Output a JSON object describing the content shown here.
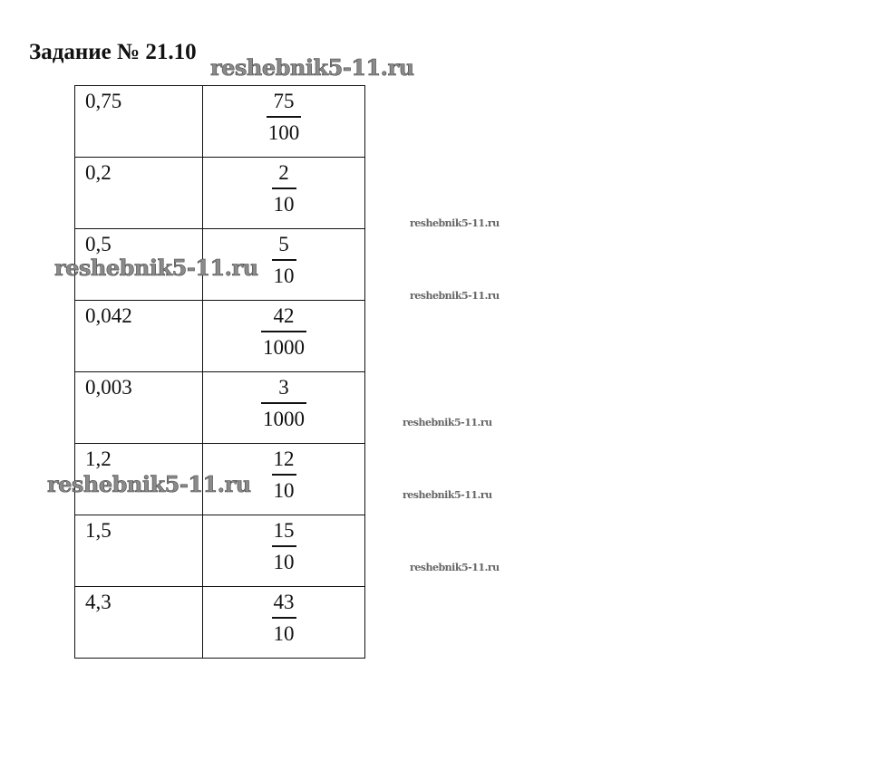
{
  "title": "Задание № 21.10",
  "watermark": "reshebnik5-11.ru",
  "rows": [
    {
      "decimal": "0,75",
      "numerator": "75",
      "denominator": "100"
    },
    {
      "decimal": "0,2",
      "numerator": "2",
      "denominator": "10"
    },
    {
      "decimal": "0,5",
      "numerator": "5",
      "denominator": "10"
    },
    {
      "decimal": "0,042",
      "numerator": "42",
      "denominator": "1000"
    },
    {
      "decimal": "0,003",
      "numerator": "3",
      "denominator": "1000"
    },
    {
      "decimal": "1,2",
      "numerator": "12",
      "denominator": "10"
    },
    {
      "decimal": "1,5",
      "numerator": "15",
      "denominator": "10"
    },
    {
      "decimal": "4,3",
      "numerator": "43",
      "denominator": "10"
    }
  ]
}
